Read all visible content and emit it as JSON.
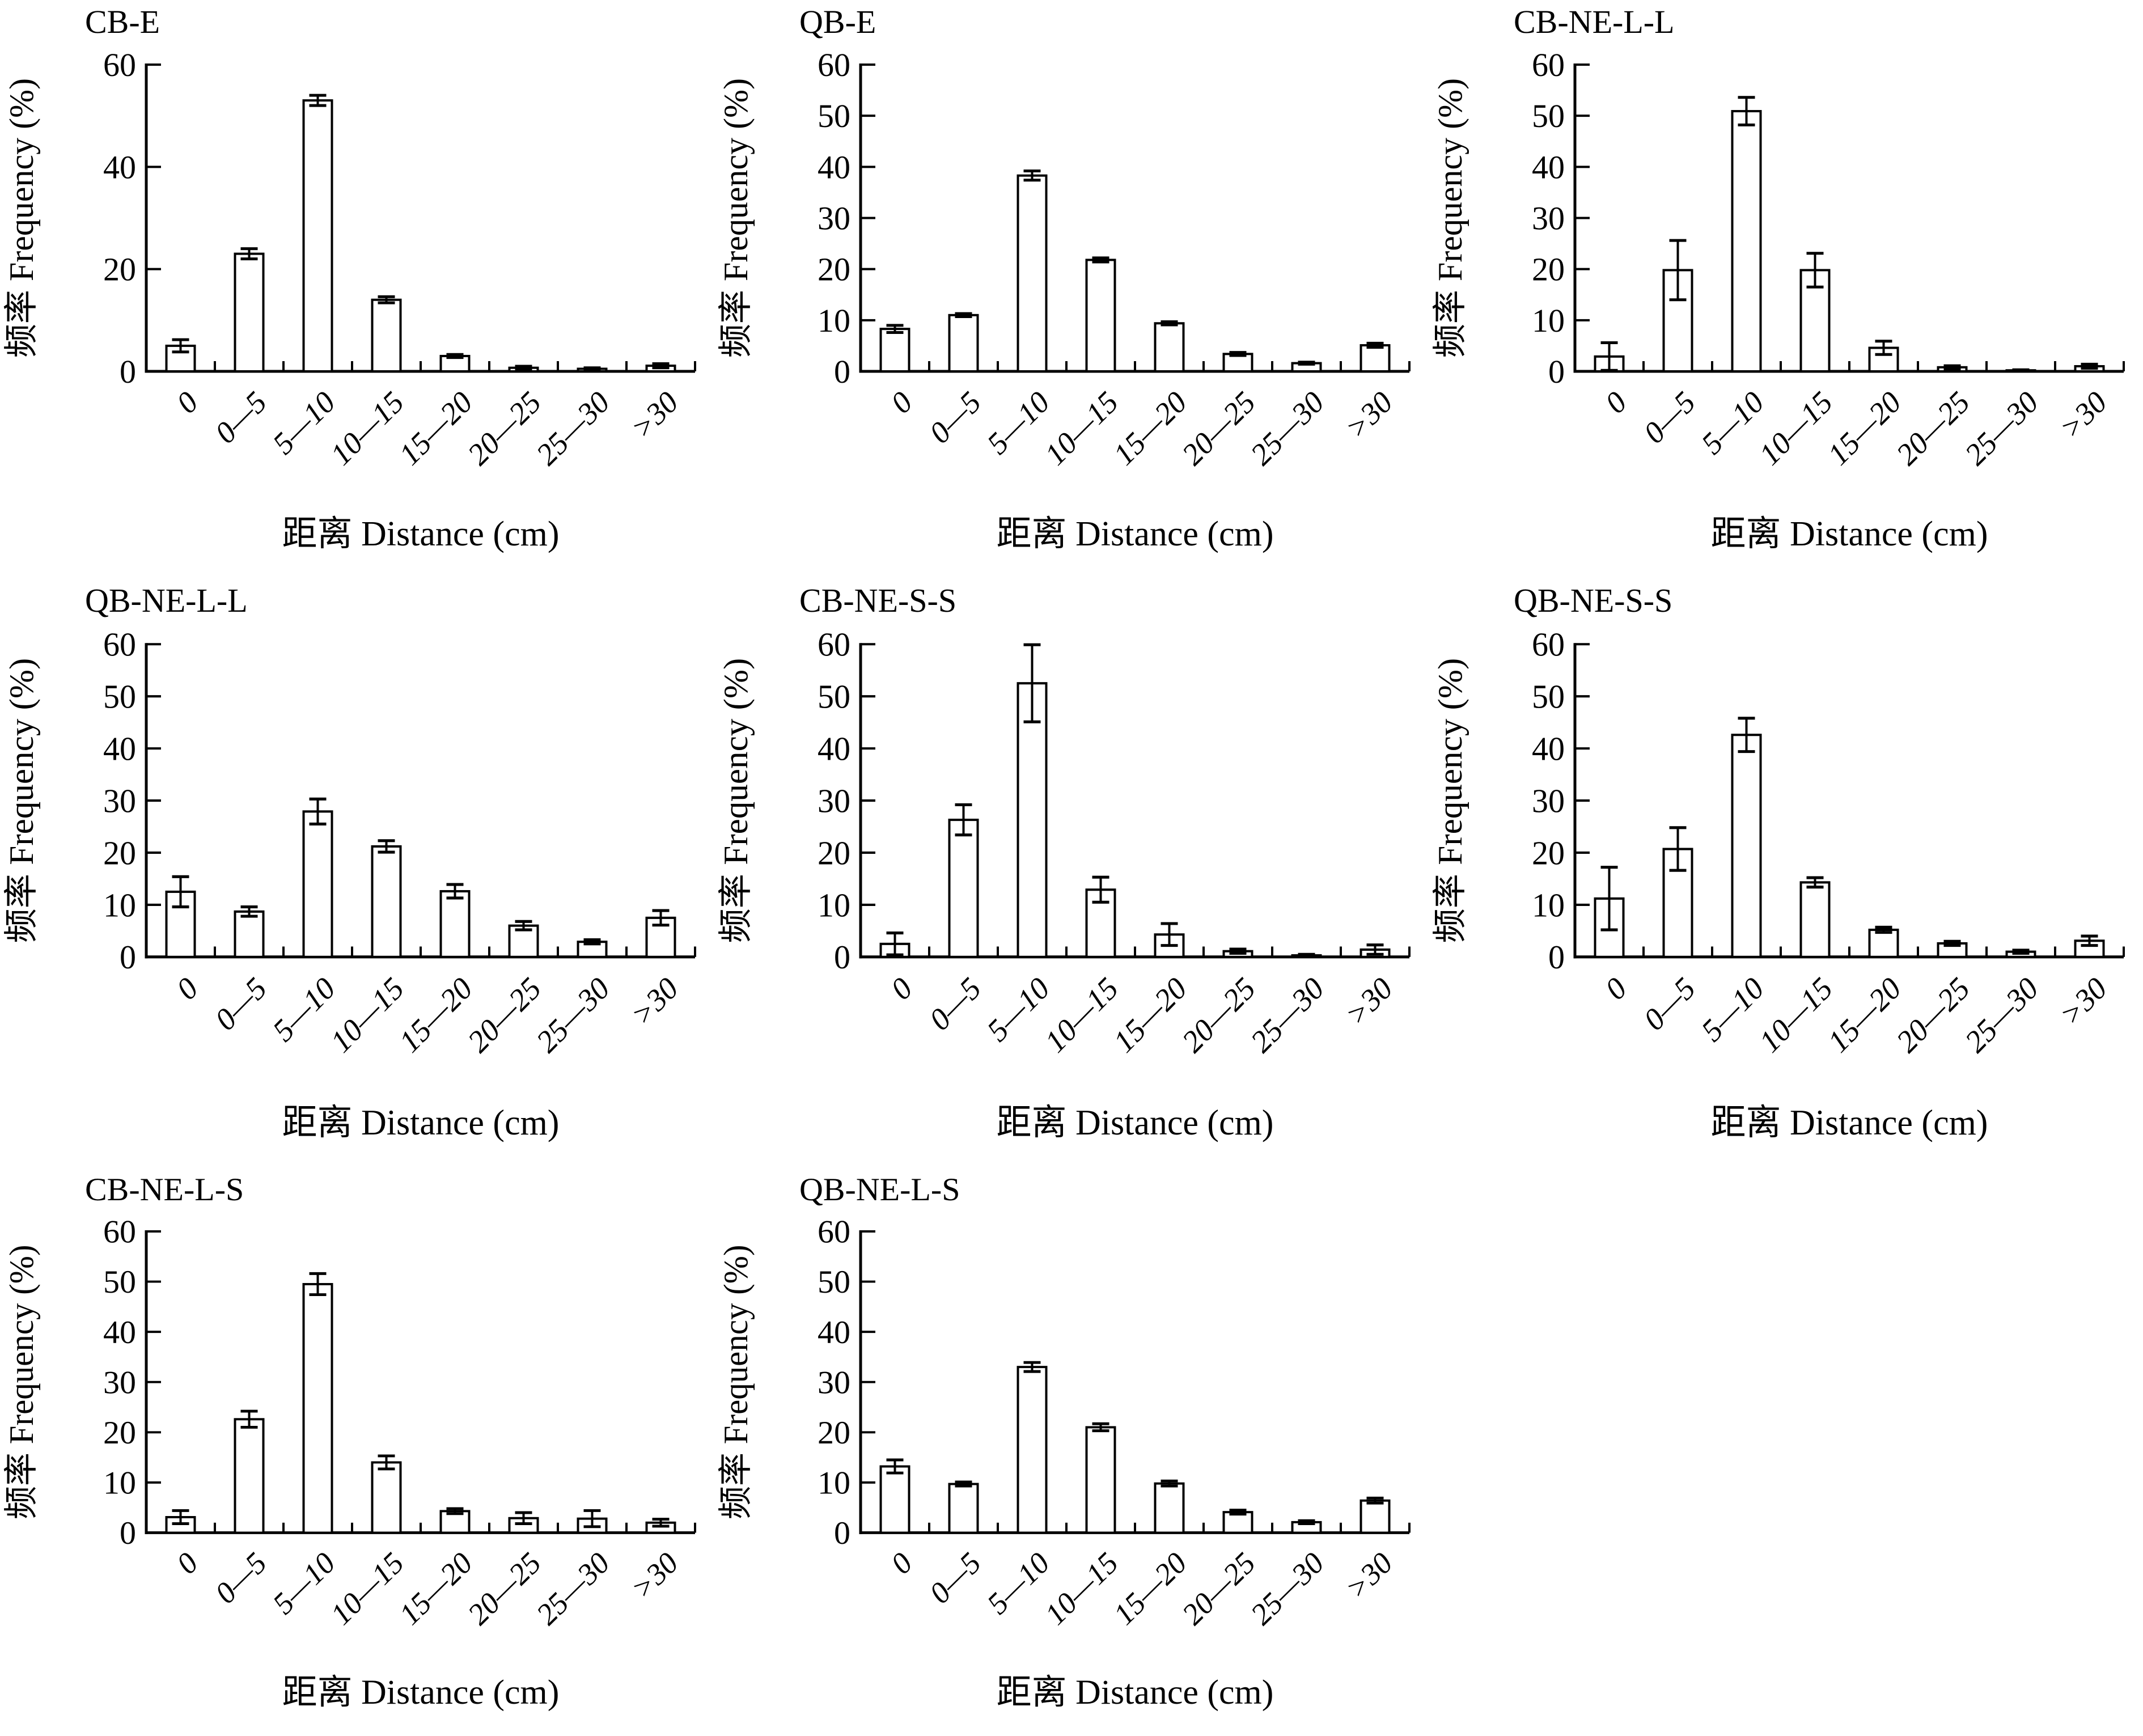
{
  "axes": {
    "ylabel": "频率 Frequency (%)",
    "xlabel": "距离 Distance (cm)",
    "categories": [
      "0",
      "0—5",
      "5—10",
      "10—15",
      "15—20",
      "20—25",
      "25—30",
      ">30"
    ],
    "ylim": [
      0,
      60
    ],
    "grid": false,
    "ink_color": "#000000",
    "bar_fill": "#ffffff"
  },
  "chart_data": [
    {
      "type": "bar",
      "title": "CB-E",
      "yticks": [
        0,
        20,
        40,
        60
      ],
      "values": [
        5.0,
        23.0,
        53.0,
        14.0,
        3.0,
        0.7,
        0.5,
        1.1
      ],
      "errors": [
        1.2,
        1.0,
        1.0,
        0.6,
        0.3,
        0.3,
        0.2,
        0.4
      ]
    },
    {
      "type": "bar",
      "title": "QB-E",
      "yticks": [
        0,
        10,
        20,
        30,
        40,
        50,
        60
      ],
      "values": [
        8.3,
        11.0,
        38.3,
        21.8,
        9.4,
        3.4,
        1.6,
        5.1
      ],
      "errors": [
        0.7,
        0.3,
        0.9,
        0.4,
        0.3,
        0.3,
        0.2,
        0.4
      ]
    },
    {
      "type": "bar",
      "title": "CB-NE-L-L",
      "yticks": [
        0,
        10,
        20,
        30,
        40,
        50,
        60
      ],
      "values": [
        2.9,
        19.8,
        50.9,
        19.8,
        4.6,
        0.8,
        0.2,
        1.0
      ],
      "errors": [
        2.7,
        5.8,
        2.7,
        3.3,
        1.3,
        0.3,
        0.1,
        0.4
      ]
    },
    {
      "type": "bar",
      "title": "QB-NE-L-L",
      "yticks": [
        0,
        10,
        20,
        30,
        40,
        50,
        60
      ],
      "values": [
        12.5,
        8.7,
        27.9,
        21.2,
        12.6,
        6.0,
        2.9,
        7.5
      ],
      "errors": [
        2.9,
        0.9,
        2.4,
        1.1,
        1.3,
        0.8,
        0.4,
        1.4
      ]
    },
    {
      "type": "bar",
      "title": "CB-NE-S-S",
      "yticks": [
        0,
        10,
        20,
        30,
        40,
        50,
        60
      ],
      "values": [
        2.5,
        26.3,
        52.5,
        12.9,
        4.3,
        1.1,
        0.3,
        1.4
      ],
      "errors": [
        2.1,
        2.9,
        7.4,
        2.4,
        2.1,
        0.4,
        0.2,
        0.9
      ]
    },
    {
      "type": "bar",
      "title": "QB-NE-S-S",
      "yticks": [
        0,
        10,
        20,
        30,
        40,
        50,
        60
      ],
      "values": [
        11.2,
        20.7,
        42.6,
        14.3,
        5.2,
        2.6,
        1.0,
        3.1
      ],
      "errors": [
        6.0,
        4.1,
        3.2,
        0.9,
        0.5,
        0.4,
        0.3,
        0.9
      ]
    },
    {
      "type": "bar",
      "title": "CB-NE-L-S",
      "yticks": [
        0,
        10,
        20,
        30,
        40,
        50,
        60
      ],
      "values": [
        3.1,
        22.6,
        49.5,
        14.0,
        4.3,
        2.9,
        2.8,
        2.0
      ],
      "errors": [
        1.3,
        1.6,
        2.1,
        1.3,
        0.5,
        1.1,
        1.6,
        0.7
      ]
    },
    {
      "type": "bar",
      "title": "QB-NE-L-S",
      "yticks": [
        0,
        10,
        20,
        30,
        40,
        50,
        60
      ],
      "values": [
        13.2,
        9.7,
        33.0,
        21.0,
        9.8,
        4.1,
        2.1,
        6.4
      ],
      "errors": [
        1.3,
        0.4,
        0.9,
        0.7,
        0.5,
        0.4,
        0.3,
        0.5
      ]
    }
  ]
}
